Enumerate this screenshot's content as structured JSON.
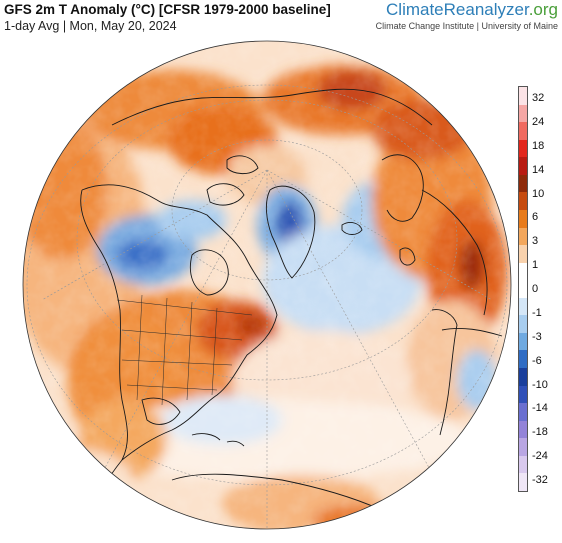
{
  "header": {
    "title": "GFS 2m T Anomaly (°C) [CFSR 1979-2000 baseline]",
    "subtitle": "1-day Avg | Mon, May 20, 2024"
  },
  "brand": {
    "name_part1": "ClimateReanalyzer",
    "name_part2": ".org",
    "tagline": "Climate Change Institute | University of Maine"
  },
  "legend": {
    "labels": [
      "32",
      "24",
      "18",
      "14",
      "10",
      "6",
      "3",
      "1",
      "0",
      "-1",
      "-3",
      "-6",
      "-10",
      "-14",
      "-18",
      "-24",
      "-32"
    ],
    "colors": [
      "#fbe3e6",
      "#f5a7a5",
      "#f06a60",
      "#e2261c",
      "#b81b12",
      "#8e2a0a",
      "#c64b0f",
      "#e87b1b",
      "#f3a75c",
      "#f9d2ad",
      "#ffffff",
      "#ffffff",
      "#d4e6f7",
      "#a8cdef",
      "#6fa9e0",
      "#2f6cc4",
      "#1a3f9c",
      "#3050b8",
      "#6a6fd0",
      "#9383d8",
      "#b9a6e3",
      "#d9c9ee",
      "#efe6f6"
    ]
  }
}
